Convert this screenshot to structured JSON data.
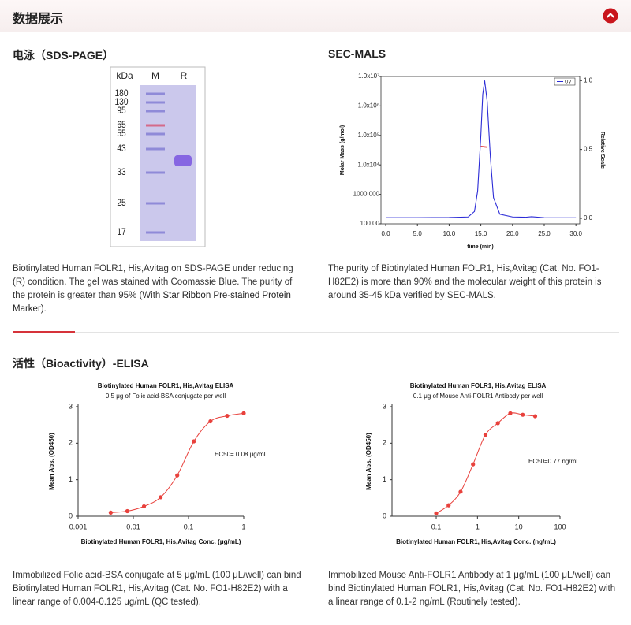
{
  "header": {
    "title": "数据展示"
  },
  "sections": [
    {
      "title": "电泳（SDS-PAGE）",
      "gel": {
        "kda_label": "kDa",
        "lanes": [
          "M",
          "R"
        ],
        "markers": [
          180,
          130,
          95,
          65,
          55,
          43,
          33,
          25,
          17
        ]
      },
      "caption": {
        "text": "Biotinylated Human FOLR1, His,Avitag on SDS-PAGE under reducing (R) condition. The gel was stained with Coomassie Blue. The purity of the protein is greater than 95% (With ",
        "link": "Star Ribbon Pre-stained Protein Marker",
        "after": ")."
      }
    },
    {
      "title": "SEC-MALS",
      "caption": "The purity of Biotinylated Human FOLR1, His,Avitag (Cat. No. FO1-H82E2) is more than 90% and the molecular weight of this protein is around 35-45 kDa verified by SEC-MALS."
    },
    {
      "title": "活性（Bioactivity）-ELISA",
      "captions": [
        "Immobilized Folic acid-BSA conjugate at 5 μg/mL (100 μL/well) can bind Biotinylated Human FOLR1, His,Avitag (Cat. No. FO1-H82E2) with a linear range of 0.004-0.125 μg/mL (QC tested).",
        "Immobilized Mouse Anti-FOLR1 Antibody at 1 μg/mL (100 μL/well) can bind Biotinylated Human FOLR1, His,Avitag (Cat. No. FO1-H82E2) with a linear range of 0.1-2 ng/mL (Routinely tested)."
      ]
    }
  ],
  "chart_data": [
    {
      "type": "line",
      "x_label": "time (min)",
      "y_label": "Molar Mass (g/mol)",
      "y2_label": "Relative Scale",
      "xlim": [
        -0.75,
        30.6
      ],
      "xticks": [
        {
          "value": 0,
          "label": "0.0"
        },
        {
          "value": 5,
          "label": "5.0"
        },
        {
          "value": 10,
          "label": "10.0"
        },
        {
          "value": 15,
          "label": "15.0"
        },
        {
          "value": 20,
          "label": "20.0"
        },
        {
          "value": 25,
          "label": "25.0"
        },
        {
          "value": 30,
          "label": "30.0"
        }
      ],
      "ylim": [
        100,
        10000000
      ],
      "y_scale": "log",
      "yticks": [
        {
          "value": 100,
          "label": "100.00"
        },
        {
          "value": 1000,
          "label": "1000.000"
        },
        {
          "value": 10000,
          "label": "1.0x10⁴"
        },
        {
          "value": 100000,
          "label": "1.0x10⁵"
        },
        {
          "value": 1000000,
          "label": "1.0x10⁶"
        },
        {
          "value": 10000000,
          "label": "1.0x10⁷"
        }
      ],
      "y2lim": [
        -0.04,
        1.03
      ],
      "y2ticks": [
        {
          "value": 0,
          "label": "0.0"
        },
        {
          "value": 0.5,
          "label": "0.5"
        },
        {
          "value": 1,
          "label": "1.0"
        }
      ],
      "legend": "top-right",
      "series": [
        {
          "name": "UV",
          "color": "#2b2bd6",
          "axis": "y2",
          "x": [
            0,
            5,
            10,
            13,
            14,
            14.5,
            15,
            15.3,
            15.6,
            16,
            16.5,
            17,
            18,
            20,
            22,
            23,
            25,
            28,
            30
          ],
          "values": [
            0.005,
            0.005,
            0.006,
            0.01,
            0.05,
            0.2,
            0.6,
            0.9,
            1.0,
            0.85,
            0.45,
            0.15,
            0.03,
            0.01,
            0.008,
            0.012,
            0.005,
            0.004,
            0.004
          ]
        },
        {
          "color": "#e02020",
          "x": [
            15.0,
            15.5,
            16.0
          ],
          "values": [
            42000,
            41000,
            40000
          ]
        }
      ]
    },
    {
      "type": "scatter",
      "title": "Biotinylated Human FOLR1, His,Avitag ELISA",
      "subtitle": "0.5 μg of Folic acid-BSA conjugate per well",
      "x_label": "Biotinylated Human FOLR1, His,Avitag Conc. (μg/mL)",
      "y_label": "Mean Abs. (OD450)",
      "annotation": "EC50= 0.08 μg/mL",
      "x_scale": "log",
      "xlim": [
        0.001,
        1
      ],
      "xticks": [
        0.001,
        0.01,
        0.1,
        1
      ],
      "ylim": [
        0,
        3
      ],
      "yticks": [
        0,
        1,
        2,
        3
      ],
      "fit": true,
      "x": [
        0.0039,
        0.0078,
        0.0156,
        0.03125,
        0.0625,
        0.125,
        0.25,
        0.5,
        1
      ],
      "series": [
        {
          "color": "#e8413c",
          "values": [
            0.1,
            0.14,
            0.27,
            0.52,
            1.12,
            2.05,
            2.6,
            2.75,
            2.82
          ]
        }
      ]
    },
    {
      "type": "scatter",
      "title": "Biotinylated Human FOLR1, His,Avitag ELISA",
      "subtitle": "0.1 μg of Mouse Anti-FOLR1 Antibody per well",
      "x_label": "Biotinylated Human FOLR1, His,Avitag Conc. (ng/mL)",
      "y_label": "Mean Abs. (OD450)",
      "annotation": "EC50=0.77 ng/mL",
      "x_scale": "log",
      "xlim": [
        0.0085,
        100
      ],
      "xticks": [
        0.1,
        1,
        10,
        100
      ],
      "ylim": [
        0,
        3
      ],
      "yticks": [
        0,
        1,
        2,
        3
      ],
      "fit": true,
      "x": [
        0.1,
        0.2,
        0.39,
        0.78,
        1.56,
        3.125,
        6.25,
        12.5,
        25
      ],
      "series": [
        {
          "color": "#e8413c",
          "values": [
            0.08,
            0.3,
            0.67,
            1.42,
            2.23,
            2.55,
            2.82,
            2.78,
            2.74
          ]
        }
      ]
    }
  ]
}
